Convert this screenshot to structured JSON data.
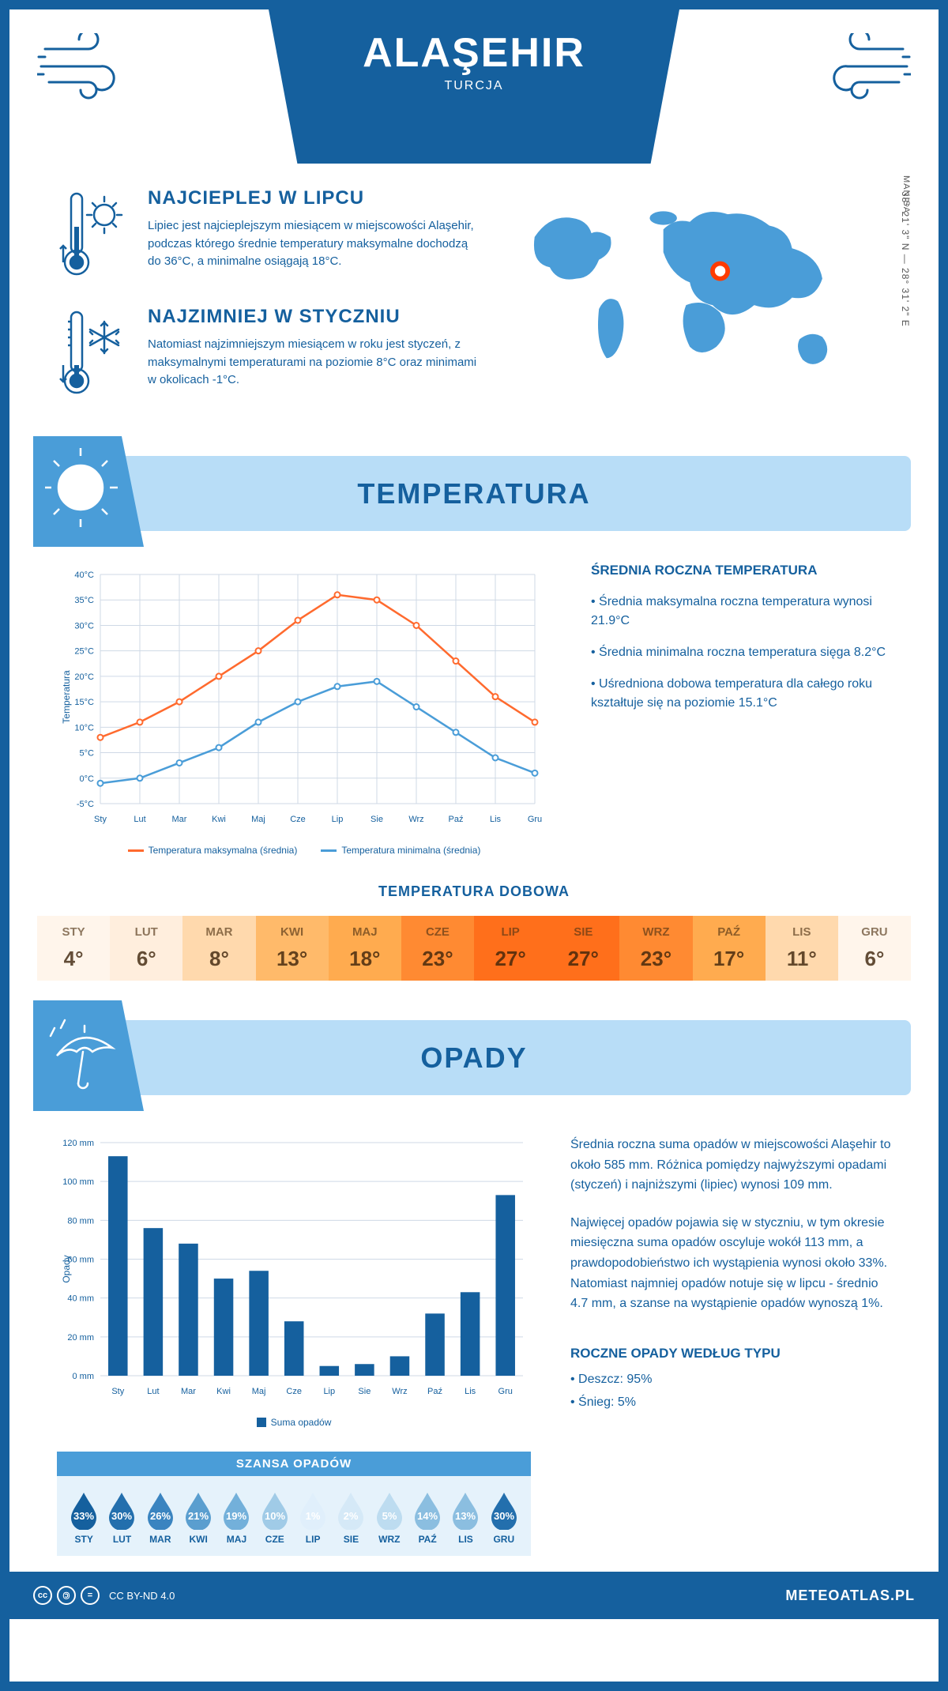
{
  "header": {
    "city": "ALAŞEHIR",
    "country": "TURCJA"
  },
  "intro": {
    "hot": {
      "heading": "NAJCIEPLEJ W LIPCU",
      "text": "Lipiec jest najcieplejszym miesiącem w miejscowości Alaşehir, podczas którego średnie temperatury maksymalne dochodzą do 36°C, a minimalne osiągają 18°C."
    },
    "cold": {
      "heading": "NAJZIMNIEJ W STYCZNIU",
      "text": "Natomiast najzimniejszym miesiącem w roku jest styczeń, z maksymalnymi temperaturami na poziomie 8°C oraz minimami w okolicach -1°C."
    },
    "coords": "38° 21' 3\" N — 28° 31' 2\" E",
    "region": "MANISA"
  },
  "temp": {
    "banner": "TEMPERATURA",
    "stats_heading": "ŚREDNIA ROCZNA TEMPERATURA",
    "stats": [
      "• Średnia maksymalna roczna temperatura wynosi 21.9°C",
      "• Średnia minimalna roczna temperatura sięga 8.2°C",
      "• Uśredniona dobowa temperatura dla całego roku kształtuje się na poziomie 15.1°C"
    ],
    "chart": {
      "months": [
        "Sty",
        "Lut",
        "Mar",
        "Kwi",
        "Maj",
        "Cze",
        "Lip",
        "Sie",
        "Wrz",
        "Paź",
        "Lis",
        "Gru"
      ],
      "max_series": [
        8,
        11,
        15,
        20,
        25,
        31,
        36,
        35,
        30,
        23,
        16,
        11
      ],
      "min_series": [
        -1,
        0,
        3,
        6,
        11,
        15,
        18,
        19,
        14,
        9,
        4,
        1
      ],
      "ymin": -5,
      "ymax": 40,
      "ytick": 5,
      "colors": {
        "max": "#ff6a2e",
        "min": "#4a9dd8",
        "grid": "#cfd9e6"
      },
      "legend_max": "Temperatura maksymalna (średnia)",
      "legend_min": "Temperatura minimalna (średnia)",
      "ylabel": "Temperatura"
    },
    "daily_title": "TEMPERATURA DOBOWA",
    "daily": {
      "months": [
        "STY",
        "LUT",
        "MAR",
        "KWI",
        "MAJ",
        "CZE",
        "LIP",
        "SIE",
        "WRZ",
        "PAŹ",
        "LIS",
        "GRU"
      ],
      "values": [
        "4°",
        "6°",
        "8°",
        "13°",
        "18°",
        "23°",
        "27°",
        "27°",
        "23°",
        "17°",
        "11°",
        "6°"
      ],
      "colors": [
        "#fff5eb",
        "#ffeedd",
        "#ffd9ad",
        "#ffba6a",
        "#ffab4f",
        "#ff8a32",
        "#ff6f1b",
        "#ff6f1b",
        "#ff8a32",
        "#ffab4f",
        "#ffd9ad",
        "#fff5eb"
      ]
    }
  },
  "precip": {
    "banner": "OPADY",
    "para1": "Średnia roczna suma opadów w miejscowości Alaşehir to około 585 mm. Różnica pomiędzy najwyższymi opadami (styczeń) i najniższymi (lipiec) wynosi 109 mm.",
    "para2": "Najwięcej opadów pojawia się w styczniu, w tym okresie miesięczna suma opadów oscyluje wokół 113 mm, a prawdopodobieństwo ich wystąpienia wynosi około 33%. Natomiast najmniej opadów notuje się w lipcu - średnio 4.7 mm, a szanse na wystąpienie opadów wynoszą 1%.",
    "type_heading": "ROCZNE OPADY WEDŁUG TYPU",
    "type_rain": "• Deszcz: 95%",
    "type_snow": "• Śnieg: 5%",
    "chart": {
      "months": [
        "Sty",
        "Lut",
        "Mar",
        "Kwi",
        "Maj",
        "Cze",
        "Lip",
        "Sie",
        "Wrz",
        "Paź",
        "Lis",
        "Gru"
      ],
      "values": [
        113,
        76,
        68,
        50,
        54,
        28,
        5,
        6,
        10,
        32,
        43,
        93
      ],
      "ymin": 0,
      "ymax": 120,
      "ytick": 20,
      "bar_color": "#15609e",
      "legend": "Suma opadów",
      "ylabel": "Opady"
    },
    "chance_title": "SZANSA OPADÓW",
    "chance": {
      "months": [
        "STY",
        "LUT",
        "MAR",
        "KWI",
        "MAJ",
        "CZE",
        "LIP",
        "SIE",
        "WRZ",
        "PAŹ",
        "LIS",
        "GRU"
      ],
      "pct": [
        "33%",
        "30%",
        "26%",
        "21%",
        "19%",
        "10%",
        "1%",
        "2%",
        "5%",
        "14%",
        "13%",
        "30%"
      ],
      "colors": [
        "#15609e",
        "#236fad",
        "#3a84c0",
        "#5a9ecf",
        "#73b0da",
        "#a0cbe7",
        "#e0effb",
        "#d5e9f7",
        "#bddcf0",
        "#8bbee0",
        "#8bbee0",
        "#236fad"
      ]
    }
  },
  "footer": {
    "license": "CC BY-ND 4.0",
    "site": "METEOATLAS.PL"
  }
}
